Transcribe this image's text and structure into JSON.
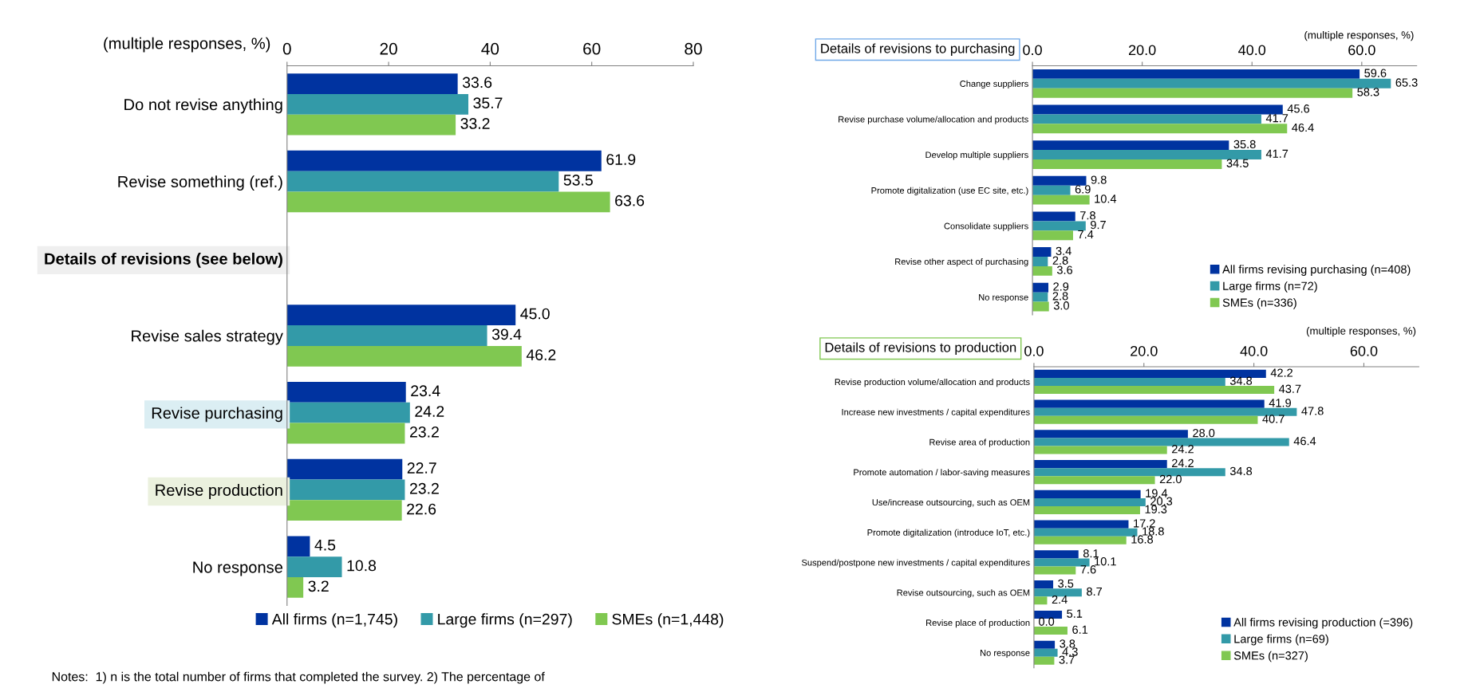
{
  "chart_data": [
    {
      "type": "bar",
      "orientation": "horizontal",
      "xlabel": "(multiple responses, %)",
      "categories": [
        "Do not revise anything",
        "Revise something (ref.)",
        "Details of revisions (see below)",
        "Revise sales strategy",
        "Revise purchasing",
        "Revise production",
        "No response"
      ],
      "xlim": [
        0,
        80
      ],
      "xticks": [
        0,
        20,
        40,
        60,
        80
      ],
      "series": [
        {
          "name": "All firms (n=1,745)",
          "color": "#0033a0",
          "values": [
            33.6,
            61.9,
            null,
            45.0,
            23.4,
            22.7,
            4.5
          ],
          "value_labels": [
            "33.6",
            "61.9",
            null,
            "45.0",
            "23.4",
            "22.7",
            "4.5"
          ]
        },
        {
          "name": "Large firms (n=297)",
          "color": "#339aa8",
          "values": [
            35.7,
            53.5,
            null,
            39.4,
            24.2,
            23.2,
            10.8
          ],
          "value_labels": [
            "35.7",
            "53.5",
            null,
            "39.4",
            "24.2",
            "23.2",
            "10.8"
          ]
        },
        {
          "name": "SMEs (n=1,448)",
          "color": "#80c851",
          "values": [
            33.2,
            63.6,
            null,
            46.2,
            23.2,
            22.6,
            3.2
          ],
          "value_labels": [
            "33.2",
            "63.6",
            null,
            "46.2",
            "23.2",
            "22.6",
            "3.2"
          ]
        }
      ],
      "legend": "bottom",
      "grid": false,
      "annotations": [
        "Notes:  1) n is the total number of firms that completed the survey. 2) The percentage of"
      ]
    },
    {
      "type": "bar",
      "orientation": "horizontal",
      "title": "Details of revisions to purchasing",
      "xlabel": "(multiple responses, %)",
      "categories": [
        "Change suppliers",
        "Revise purchase volume/allocation and products",
        "Develop multiple suppliers",
        "Promote digitalization (use EC site, etc.)",
        "Consolidate suppliers",
        "Revise other aspect of purchasing",
        "No response"
      ],
      "xlim": [
        0,
        70
      ],
      "xticks": [
        {
          "value": 0,
          "label": "0.0"
        },
        {
          "value": 20,
          "label": "20.0"
        },
        {
          "value": 40,
          "label": "40.0"
        },
        {
          "value": 60,
          "label": "60.0"
        }
      ],
      "series": [
        {
          "name": "All firms revising purchasing (n=408)",
          "color": "#0033a0",
          "values": [
            59.6,
            45.6,
            35.8,
            9.8,
            7.8,
            3.4,
            2.9
          ],
          "value_labels": [
            "59.6",
            "45.6",
            "35.8",
            "9.8",
            "7.8",
            "3.4",
            "2.9"
          ]
        },
        {
          "name": "Large firms (n=72)",
          "color": "#339aa8",
          "values": [
            65.3,
            41.7,
            41.7,
            6.9,
            9.7,
            2.8,
            2.8
          ],
          "value_labels": [
            "65.3",
            "41.7",
            "41.7",
            "6.9",
            "9.7",
            "2.8",
            "2.8"
          ]
        },
        {
          "name": "SMEs (n=336)",
          "color": "#80c851",
          "values": [
            58.3,
            46.4,
            34.5,
            10.4,
            7.4,
            3.6,
            3.0
          ],
          "value_labels": [
            "58.3",
            "46.4",
            "34.5",
            "10.4",
            "7.4",
            "3.6",
            "3.0"
          ]
        }
      ],
      "legend": "bottom right",
      "grid": false
    },
    {
      "type": "bar",
      "orientation": "horizontal",
      "title": "Details of revisions to production",
      "xlabel": "(multiple responses, %)",
      "categories": [
        "Revise production volume/allocation and products",
        "Increase new investments / capital expenditures",
        "Revise area of production",
        "Promote automation / labor-saving measures",
        "Use/increase outsourcing, such as OEM",
        "Promote digitalization (introduce IoT, etc.)",
        "Suspend/postpone new investments / capital expenditures",
        "Revise outsourcing, such as OEM",
        "Revise place of production",
        "No response"
      ],
      "xlim": [
        0,
        70
      ],
      "xticks": [
        {
          "value": 0,
          "label": "0.0"
        },
        {
          "value": 20,
          "label": "20.0"
        },
        {
          "value": 40,
          "label": "40.0"
        },
        {
          "value": 60,
          "label": "60.0"
        }
      ],
      "series": [
        {
          "name": "All firms revising production (=396)",
          "color": "#0033a0",
          "values": [
            42.2,
            41.9,
            28.0,
            24.2,
            19.4,
            17.2,
            8.1,
            3.5,
            5.1,
            3.8
          ],
          "value_labels": [
            "42.2",
            "41.9",
            "28.0",
            "24.2",
            "19.4",
            "17.2",
            "8.1",
            "3.5",
            "5.1",
            "3.8"
          ]
        },
        {
          "name": "Large firms (n=69)",
          "color": "#339aa8",
          "values": [
            34.8,
            47.8,
            46.4,
            34.8,
            20.3,
            18.8,
            10.1,
            8.7,
            0.0,
            4.3
          ],
          "value_labels": [
            "34.8",
            "47.8",
            "46.4",
            "34.8",
            "20.3",
            "18.8",
            "10.1",
            "8.7",
            "0.0",
            "4.3"
          ]
        },
        {
          "name": "SMEs (n=327)",
          "color": "#80c851",
          "values": [
            43.7,
            40.7,
            24.2,
            22.0,
            19.3,
            16.8,
            7.6,
            2.4,
            6.1,
            3.7
          ],
          "value_labels": [
            "43.7",
            "40.7",
            "24.2",
            "22.0",
            "19.3",
            "16.8",
            "7.6",
            "2.4",
            "6.1",
            "3.7"
          ]
        }
      ],
      "legend": "bottom right",
      "grid": false
    }
  ]
}
